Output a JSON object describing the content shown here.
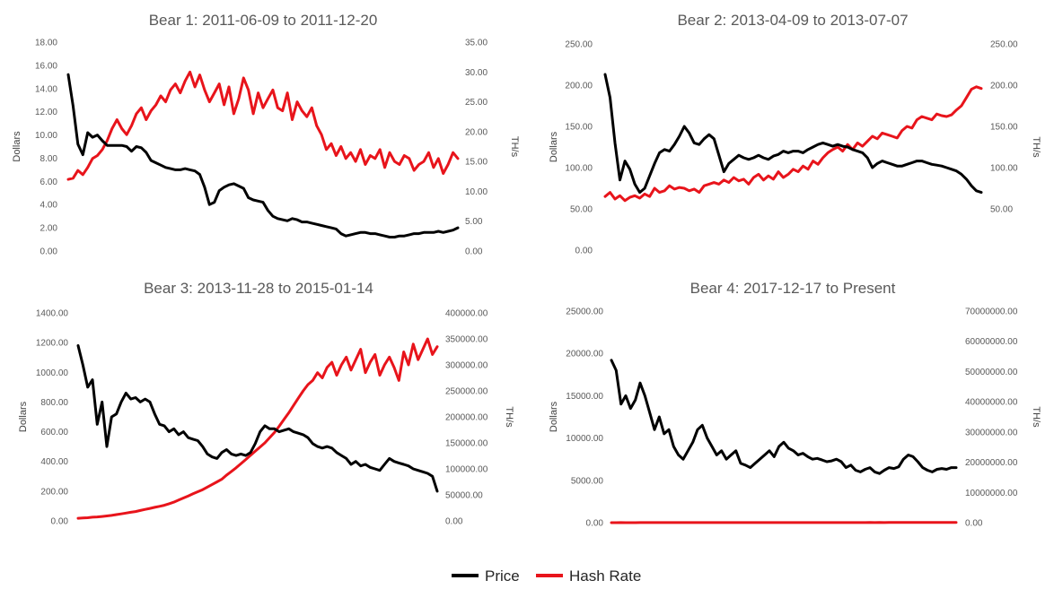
{
  "colors": {
    "price": "#000000",
    "hash_rate": "#e8141b"
  },
  "legend": [
    {
      "name": "Price",
      "color": "#000000"
    },
    {
      "name": "Hash Rate",
      "color": "#e8141b"
    }
  ],
  "chart_data": [
    {
      "type": "line",
      "title": "Bear 1: 2011-06-09 to 2011-12-20",
      "ylabel": "Dollars",
      "y2label": "TH/s",
      "ylim": [
        0,
        18
      ],
      "y2lim": [
        0,
        35
      ],
      "yticks": [
        "0.00",
        "2.00",
        "4.00",
        "6.00",
        "8.00",
        "10.00",
        "12.00",
        "14.00",
        "16.00",
        "18.00"
      ],
      "y2ticks": [
        "0.00",
        "5.00",
        "10.00",
        "15.00",
        "20.00",
        "25.00",
        "30.00",
        "35.00"
      ],
      "legend_placement": "bottom",
      "series": [
        {
          "name": "Price",
          "axis": "left",
          "values": [
            15.2,
            12.5,
            9.2,
            8.3,
            10.2,
            9.8,
            10.0,
            9.5,
            9.1,
            9.1,
            9.1,
            9.1,
            9.0,
            8.6,
            9.0,
            8.9,
            8.5,
            7.8,
            7.6,
            7.4,
            7.2,
            7.1,
            7.0,
            7.0,
            7.1,
            7.0,
            6.9,
            6.6,
            5.5,
            4.0,
            4.2,
            5.2,
            5.5,
            5.7,
            5.8,
            5.6,
            5.4,
            4.6,
            4.4,
            4.3,
            4.2,
            3.5,
            3.0,
            2.8,
            2.7,
            2.6,
            2.8,
            2.7,
            2.5,
            2.5,
            2.4,
            2.3,
            2.2,
            2.1,
            2.0,
            1.9,
            1.5,
            1.3,
            1.4,
            1.5,
            1.6,
            1.6,
            1.5,
            1.5,
            1.4,
            1.3,
            1.2,
            1.2,
            1.3,
            1.3,
            1.4,
            1.5,
            1.5,
            1.6,
            1.6,
            1.6,
            1.7,
            1.6,
            1.7,
            1.8,
            2.0
          ]
        },
        {
          "name": "Hash Rate",
          "axis": "right",
          "values": [
            12.0,
            12.2,
            13.5,
            12.8,
            14.0,
            15.5,
            16.0,
            17.0,
            18.5,
            20.5,
            22.0,
            20.5,
            19.5,
            21.0,
            23.0,
            24.0,
            22.0,
            23.5,
            24.5,
            26.0,
            25.0,
            27.0,
            28.0,
            26.5,
            28.5,
            30.0,
            27.5,
            29.5,
            27.0,
            25.0,
            26.5,
            28.0,
            24.5,
            27.5,
            23.0,
            25.5,
            29.0,
            27.0,
            23.0,
            26.5,
            24.0,
            25.5,
            27.0,
            24.0,
            23.5,
            26.5,
            22.0,
            25.0,
            23.5,
            22.5,
            24.0,
            21.0,
            19.5,
            17.0,
            18.0,
            16.0,
            17.5,
            15.5,
            16.5,
            15.0,
            17.0,
            14.5,
            16.0,
            15.5,
            17.0,
            14.0,
            16.5,
            15.0,
            14.5,
            16.0,
            15.5,
            13.5,
            14.5,
            15.0,
            16.5,
            14.0,
            15.5,
            13.0,
            14.5,
            16.5,
            15.5
          ]
        }
      ]
    },
    {
      "type": "line",
      "title": "Bear 2: 2013-04-09 to 2013-07-07",
      "ylabel": "Dollars",
      "y2label": "TH/s",
      "ylim": [
        0,
        250
      ],
      "y2lim": [
        0,
        250
      ],
      "yticks": [
        "0.00",
        "50.00",
        "100.00",
        "150.00",
        "200.00",
        "250.00"
      ],
      "y2ticks": [
        "50.00",
        "100.00",
        "150.00",
        "200.00",
        "250.00"
      ],
      "legend_placement": "bottom",
      "series": [
        {
          "name": "Price",
          "axis": "left",
          "values": [
            213,
            185,
            130,
            85,
            108,
            98,
            80,
            70,
            75,
            90,
            105,
            118,
            122,
            120,
            128,
            138,
            150,
            142,
            130,
            128,
            135,
            140,
            135,
            115,
            95,
            105,
            110,
            115,
            112,
            110,
            112,
            115,
            112,
            110,
            114,
            116,
            120,
            118,
            120,
            120,
            118,
            122,
            125,
            128,
            130,
            128,
            126,
            128,
            126,
            125,
            122,
            120,
            118,
            112,
            100,
            105,
            108,
            106,
            104,
            102,
            102,
            104,
            106,
            108,
            108,
            106,
            104,
            103,
            102,
            100,
            98,
            96,
            92,
            86,
            78,
            72,
            70
          ]
        },
        {
          "name": "Hash Rate",
          "axis": "right",
          "values": [
            65,
            70,
            62,
            66,
            60,
            64,
            66,
            63,
            68,
            65,
            75,
            70,
            72,
            78,
            74,
            76,
            75,
            72,
            74,
            70,
            78,
            80,
            82,
            80,
            85,
            82,
            88,
            84,
            86,
            80,
            88,
            92,
            85,
            90,
            86,
            95,
            88,
            92,
            98,
            95,
            102,
            98,
            108,
            104,
            112,
            118,
            122,
            125,
            120,
            128,
            122,
            130,
            126,
            132,
            138,
            135,
            142,
            140,
            138,
            136,
            145,
            150,
            148,
            158,
            162,
            160,
            158,
            165,
            163,
            162,
            164,
            170,
            175,
            185,
            195,
            198,
            196
          ]
        }
      ]
    },
    {
      "type": "line",
      "title": "Bear 3: 2013-11-28 to 2015-01-14",
      "ylabel": "Dollars",
      "y2label": "TH/s",
      "ylim": [
        0,
        1400
      ],
      "y2lim": [
        0,
        400000
      ],
      "yticks": [
        "0.00",
        "200.00",
        "400.00",
        "600.00",
        "800.00",
        "1000.00",
        "1200.00",
        "1400.00"
      ],
      "y2ticks": [
        "0.00",
        "50000.00",
        "100000.00",
        "150000.00",
        "200000.00",
        "250000.00",
        "300000.00",
        "350000.00",
        "400000.00"
      ],
      "legend_placement": "bottom",
      "series": [
        {
          "name": "Price",
          "axis": "left",
          "values": [
            1180,
            1050,
            900,
            950,
            650,
            800,
            500,
            700,
            720,
            800,
            860,
            820,
            830,
            800,
            820,
            800,
            720,
            650,
            640,
            600,
            620,
            580,
            600,
            560,
            550,
            540,
            500,
            450,
            430,
            420,
            460,
            480,
            450,
            440,
            450,
            440,
            460,
            520,
            600,
            640,
            620,
            620,
            600,
            610,
            620,
            600,
            590,
            580,
            560,
            520,
            500,
            490,
            500,
            490,
            460,
            440,
            420,
            380,
            400,
            370,
            380,
            360,
            350,
            340,
            380,
            420,
            400,
            390,
            380,
            370,
            350,
            340,
            330,
            320,
            300,
            200
          ]
        },
        {
          "name": "Hash Rate",
          "axis": "right",
          "values": [
            5000,
            5500,
            6000,
            7000,
            7500,
            8500,
            9500,
            10500,
            12000,
            13500,
            15000,
            16500,
            18000,
            20000,
            22000,
            24000,
            26000,
            28000,
            30000,
            33000,
            36000,
            40000,
            44000,
            48000,
            52000,
            56000,
            60000,
            65000,
            70000,
            75000,
            80000,
            88000,
            95000,
            102000,
            110000,
            118000,
            126000,
            134000,
            142000,
            150000,
            160000,
            170000,
            182000,
            195000,
            208000,
            222000,
            236000,
            250000,
            262000,
            270000,
            285000,
            275000,
            295000,
            305000,
            280000,
            300000,
            315000,
            290000,
            310000,
            330000,
            285000,
            305000,
            320000,
            280000,
            300000,
            315000,
            295000,
            270000,
            325000,
            300000,
            340000,
            310000,
            330000,
            350000,
            320000,
            335000
          ]
        }
      ]
    },
    {
      "type": "line",
      "title": "Bear 4: 2017-12-17 to Present",
      "ylabel": "Dollars",
      "y2label": "TH/s",
      "ylim": [
        0,
        25000
      ],
      "y2lim": [
        0,
        70000000
      ],
      "yticks": [
        "0.00",
        "5000.00",
        "10000.00",
        "15000.00",
        "20000.00",
        "25000.00"
      ],
      "y2ticks": [
        "0.00",
        "10000000.00",
        "20000000.00",
        "30000000.00",
        "40000000.00",
        "50000000.00",
        "60000000.00",
        "70000000.00"
      ],
      "legend_placement": "bottom",
      "series": [
        {
          "name": "Price",
          "axis": "left",
          "values": [
            19200,
            18000,
            14000,
            15000,
            13500,
            14500,
            16500,
            15000,
            13000,
            11000,
            12500,
            10500,
            11000,
            9000,
            8000,
            7500,
            8500,
            9500,
            11000,
            11500,
            10000,
            9000,
            8000,
            8500,
            7500,
            8000,
            8500,
            7000,
            6800,
            6500,
            7000,
            7500,
            8000,
            8500,
            7800,
            9000,
            9500,
            8800,
            8500,
            8000,
            8200,
            7800,
            7500,
            7600,
            7400,
            7200,
            7300,
            7500,
            7200,
            6500,
            6800,
            6200,
            6000,
            6300,
            6500,
            6000,
            5800,
            6200,
            6500,
            6400,
            6600,
            7500,
            8000,
            7800,
            7200,
            6500,
            6200,
            6000,
            6300,
            6400,
            6300,
            6500,
            6500
          ]
        },
        {
          "name": "Hash Rate",
          "axis": "right",
          "values": [
            13500,
            12500,
            15000,
            13000,
            14500,
            14000,
            15000,
            16000,
            15500,
            17000,
            16500,
            18000,
            17500,
            19000,
            18500,
            20000,
            19500,
            21000,
            20000,
            21500,
            22000,
            21000,
            23000,
            22500,
            24000,
            23500,
            25000,
            24000,
            26000,
            25000,
            27000,
            26500,
            28000,
            27000,
            29500,
            28000,
            31000,
            29500,
            32000,
            30500,
            33000,
            32000,
            35000,
            33500,
            36000,
            35000,
            38000,
            36500,
            40000,
            38000,
            41000,
            39500,
            43000,
            41000,
            45000,
            42500,
            47000,
            44000,
            48000,
            46000,
            50000,
            47000,
            51000,
            48500,
            53000,
            50000,
            55000,
            51500,
            56000,
            53000,
            49000,
            52000,
            62000
          ]
        }
      ]
    }
  ]
}
